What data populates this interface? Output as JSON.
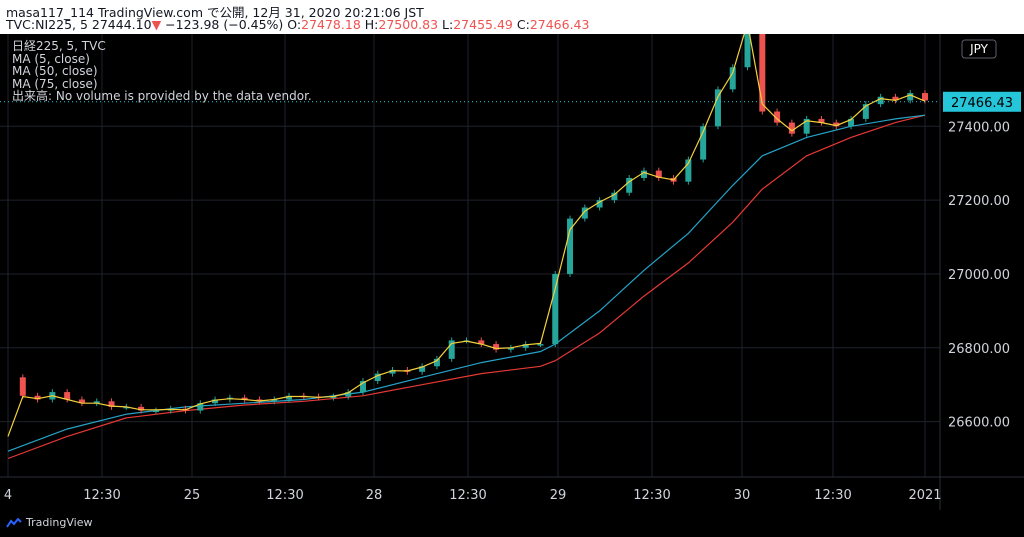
{
  "header": {
    "line1": "masa117_114 TradingView.com で公開, 12月 31, 2020 20:21:06 JST",
    "symbol": "TVC:NI225, 5",
    "last": "27444.10",
    "arrow": "▼",
    "change": "−123.98 (−0.45%)",
    "o_label": "O:",
    "o_val": "27478.18",
    "h_label": "H:",
    "h_val": "27500.83",
    "l_label": "L:",
    "l_val": "27455.49",
    "c_label": "C:",
    "c_val": "27466.43"
  },
  "legend": {
    "title": "日経225, 5, TVC",
    "ma5": "MA (5, close)",
    "ma50": "MA (50, close)",
    "ma75": "MA (75, close)",
    "volume": "出来高: No volume is provided by the data vendor."
  },
  "brand": {
    "name": "TradingView"
  },
  "colors": {
    "up": "#26a69a",
    "down": "#ef5350",
    "ma5": "#f5d03a",
    "ma50": "#26a2c8",
    "ma75": "#e53935",
    "grid": "#1e222d",
    "axis_text": "#d1d4dc",
    "price_tag": "#26c6da"
  },
  "chart_data": {
    "type": "line",
    "title": "日経225, 5, TVC",
    "currency": "JPY",
    "y_axis": {
      "ticks": [
        26600,
        26800,
        27000,
        27200,
        27400
      ],
      "tick_labels": [
        "26600.00",
        "26800.00",
        "27000.00",
        "27200.00",
        "27400.00"
      ],
      "ylim": [
        26450,
        27650
      ]
    },
    "x_axis": {
      "tick_labels": [
        "4",
        "12:30",
        "25",
        "12:30",
        "28",
        "12:30",
        "29",
        "12:30",
        "30",
        "12:30",
        "2021"
      ]
    },
    "last_price_label": "27466.43",
    "grid": true,
    "series": [
      {
        "name": "日経225, 5, TVC",
        "points": [
          [
            0,
            26720
          ],
          [
            5,
            26670
          ],
          [
            10,
            26660
          ],
          [
            15,
            26680
          ],
          [
            20,
            26660
          ],
          [
            25,
            26650
          ],
          [
            30,
            26655
          ],
          [
            35,
            26640
          ],
          [
            40,
            26640
          ],
          [
            45,
            26630
          ],
          [
            50,
            26630
          ],
          [
            55,
            26635
          ],
          [
            60,
            26630
          ],
          [
            65,
            26650
          ],
          [
            70,
            26660
          ],
          [
            75,
            26665
          ],
          [
            80,
            26660
          ],
          [
            85,
            26655
          ],
          [
            90,
            26660
          ],
          [
            95,
            26670
          ],
          [
            100,
            26668
          ],
          [
            105,
            26665
          ],
          [
            110,
            26668
          ],
          [
            115,
            26680
          ],
          [
            120,
            26710
          ],
          [
            125,
            26730
          ],
          [
            130,
            26740
          ],
          [
            135,
            26735
          ],
          [
            140,
            26750
          ],
          [
            145,
            26770
          ],
          [
            150,
            26820
          ],
          [
            155,
            26820
          ],
          [
            160,
            26810
          ],
          [
            165,
            26795
          ],
          [
            170,
            26800
          ],
          [
            175,
            26810
          ],
          [
            180,
            26810
          ],
          [
            185,
            27000
          ],
          [
            190,
            27150
          ],
          [
            195,
            27180
          ],
          [
            200,
            27200
          ],
          [
            205,
            27220
          ],
          [
            210,
            27260
          ],
          [
            215,
            27280
          ],
          [
            220,
            27260
          ],
          [
            225,
            27250
          ],
          [
            230,
            27310
          ],
          [
            235,
            27400
          ],
          [
            240,
            27500
          ],
          [
            245,
            27560
          ],
          [
            250,
            27720
          ],
          [
            255,
            27440
          ],
          [
            260,
            27410
          ],
          [
            265,
            27380
          ],
          [
            270,
            27420
          ],
          [
            275,
            27410
          ],
          [
            280,
            27400
          ],
          [
            285,
            27420
          ],
          [
            290,
            27460
          ],
          [
            295,
            27480
          ],
          [
            300,
            27470
          ],
          [
            305,
            27490
          ],
          [
            310,
            27470
          ]
        ]
      },
      {
        "name": "MA (5, close)",
        "points": [
          [
            0,
            26560
          ],
          [
            5,
            26668
          ],
          [
            10,
            26662
          ],
          [
            15,
            26670
          ],
          [
            20,
            26660
          ],
          [
            25,
            26650
          ],
          [
            30,
            26650
          ],
          [
            35,
            26642
          ],
          [
            40,
            26640
          ],
          [
            45,
            26632
          ],
          [
            50,
            26632
          ],
          [
            55,
            26633
          ],
          [
            60,
            26632
          ],
          [
            65,
            26648
          ],
          [
            70,
            26658
          ],
          [
            75,
            26662
          ],
          [
            80,
            26660
          ],
          [
            85,
            26656
          ],
          [
            90,
            26660
          ],
          [
            95,
            26668
          ],
          [
            100,
            26668
          ],
          [
            105,
            26666
          ],
          [
            110,
            26668
          ],
          [
            115,
            26678
          ],
          [
            120,
            26705
          ],
          [
            125,
            26725
          ],
          [
            130,
            26738
          ],
          [
            135,
            26737
          ],
          [
            140,
            26748
          ],
          [
            145,
            26765
          ],
          [
            150,
            26812
          ],
          [
            155,
            26818
          ],
          [
            160,
            26810
          ],
          [
            165,
            26798
          ],
          [
            170,
            26800
          ],
          [
            175,
            26808
          ],
          [
            180,
            26812
          ],
          [
            185,
            26960
          ],
          [
            190,
            27120
          ],
          [
            195,
            27170
          ],
          [
            200,
            27195
          ],
          [
            205,
            27215
          ],
          [
            210,
            27250
          ],
          [
            215,
            27275
          ],
          [
            220,
            27262
          ],
          [
            225,
            27255
          ],
          [
            230,
            27300
          ],
          [
            235,
            27385
          ],
          [
            240,
            27480
          ],
          [
            245,
            27545
          ],
          [
            250,
            27680
          ],
          [
            255,
            27460
          ],
          [
            260,
            27420
          ],
          [
            265,
            27388
          ],
          [
            270,
            27415
          ],
          [
            275,
            27410
          ],
          [
            280,
            27402
          ],
          [
            285,
            27418
          ],
          [
            290,
            27455
          ],
          [
            295,
            27475
          ],
          [
            300,
            27470
          ],
          [
            305,
            27485
          ],
          [
            310,
            27468
          ]
        ]
      },
      {
        "name": "MA (50, close)",
        "points": [
          [
            0,
            26520
          ],
          [
            20,
            26580
          ],
          [
            40,
            26620
          ],
          [
            60,
            26640
          ],
          [
            80,
            26650
          ],
          [
            100,
            26660
          ],
          [
            120,
            26680
          ],
          [
            140,
            26720
          ],
          [
            160,
            26760
          ],
          [
            180,
            26790
          ],
          [
            185,
            26810
          ],
          [
            200,
            26900
          ],
          [
            215,
            27010
          ],
          [
            230,
            27110
          ],
          [
            245,
            27240
          ],
          [
            255,
            27320
          ],
          [
            270,
            27370
          ],
          [
            285,
            27400
          ],
          [
            300,
            27420
          ],
          [
            310,
            27430
          ]
        ]
      },
      {
        "name": "MA (75, close)",
        "points": [
          [
            0,
            26500
          ],
          [
            20,
            26560
          ],
          [
            40,
            26610
          ],
          [
            60,
            26630
          ],
          [
            80,
            26645
          ],
          [
            100,
            26655
          ],
          [
            120,
            26670
          ],
          [
            140,
            26700
          ],
          [
            160,
            26730
          ],
          [
            180,
            26750
          ],
          [
            185,
            26765
          ],
          [
            200,
            26840
          ],
          [
            215,
            26940
          ],
          [
            230,
            27030
          ],
          [
            245,
            27140
          ],
          [
            255,
            27230
          ],
          [
            270,
            27320
          ],
          [
            285,
            27370
          ],
          [
            300,
            27410
          ],
          [
            310,
            27430
          ]
        ]
      }
    ]
  }
}
